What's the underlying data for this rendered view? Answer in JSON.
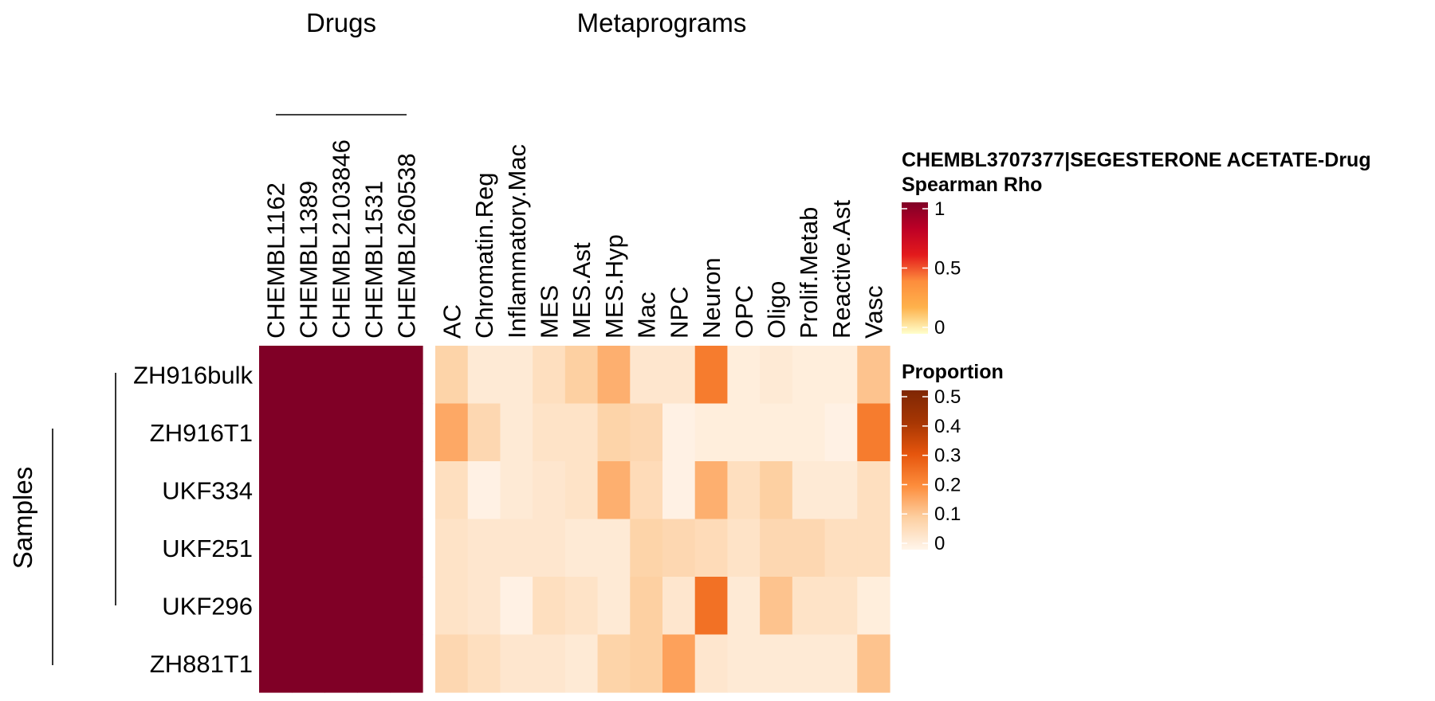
{
  "chart_data": {
    "type": "heatmap",
    "panel_titles": {
      "drugs": "Drugs",
      "metaprograms": "Metaprograms",
      "samples": "Samples"
    },
    "rows": [
      "ZH916bulk",
      "ZH916T1",
      "UKF334",
      "UKF251",
      "UKF296",
      "ZH881T1"
    ],
    "drug_columns": [
      "CHEMBL1162",
      "CHEMBL1389",
      "CHEMBL2103846",
      "CHEMBL1531",
      "CHEMBL260538"
    ],
    "drug_values": [
      [
        1,
        1,
        1,
        1,
        1
      ],
      [
        1,
        1,
        1,
        1,
        1
      ],
      [
        1,
        1,
        1,
        1,
        1
      ],
      [
        1,
        1,
        1,
        1,
        1
      ],
      [
        1,
        1,
        1,
        1,
        1
      ],
      [
        1,
        1,
        1,
        1,
        1
      ]
    ],
    "metaprogram_columns": [
      "AC",
      "Chromatin.Reg",
      "Inflammatory.Mac",
      "MES",
      "MES.Ast",
      "MES.Hyp",
      "Mac",
      "NPC",
      "Neuron",
      "OPC",
      "Oligo",
      "Prolif.Metab",
      "Reactive.Ast",
      "Vasc"
    ],
    "proportion_values": [
      [
        0.09,
        0.03,
        0.03,
        0.06,
        0.1,
        0.15,
        0.04,
        0.04,
        0.23,
        0.02,
        0.03,
        0.02,
        0.02,
        0.12
      ],
      [
        0.16,
        0.08,
        0.03,
        0.05,
        0.05,
        0.09,
        0.08,
        0.01,
        0.02,
        0.02,
        0.02,
        0.02,
        0.01,
        0.23
      ],
      [
        0.06,
        0.01,
        0.03,
        0.04,
        0.05,
        0.15,
        0.07,
        0.01,
        0.15,
        0.06,
        0.1,
        0.03,
        0.03,
        0.06
      ],
      [
        0.05,
        0.04,
        0.04,
        0.04,
        0.03,
        0.03,
        0.09,
        0.08,
        0.07,
        0.05,
        0.08,
        0.08,
        0.06,
        0.06
      ],
      [
        0.05,
        0.04,
        0.01,
        0.06,
        0.05,
        0.03,
        0.1,
        0.04,
        0.25,
        0.03,
        0.12,
        0.05,
        0.05,
        0.02
      ],
      [
        0.08,
        0.06,
        0.04,
        0.04,
        0.03,
        0.09,
        0.1,
        0.17,
        0.04,
        0.03,
        0.03,
        0.03,
        0.03,
        0.12
      ]
    ],
    "legends": [
      {
        "title": "CHEMBL3707377|SEGESTERONE ACETATE-Drug",
        "subtitle": "Spearman Rho",
        "ticks": [
          "1",
          "0.5",
          "0"
        ],
        "range": [
          0,
          1
        ],
        "colors": [
          "#ffffcc",
          "#feb24c",
          "#fd8d3c",
          "#e31a1c",
          "#bd0026",
          "#800026"
        ]
      },
      {
        "title": "Proportion",
        "ticks": [
          "0.5",
          "0.4",
          "0.3",
          "0.2",
          "0.1",
          "0"
        ],
        "range": [
          0,
          0.5
        ],
        "colors": [
          "#fff5eb",
          "#fdd0a2",
          "#fd8d3c",
          "#e6550d",
          "#a63603",
          "#7f2704"
        ]
      }
    ]
  }
}
